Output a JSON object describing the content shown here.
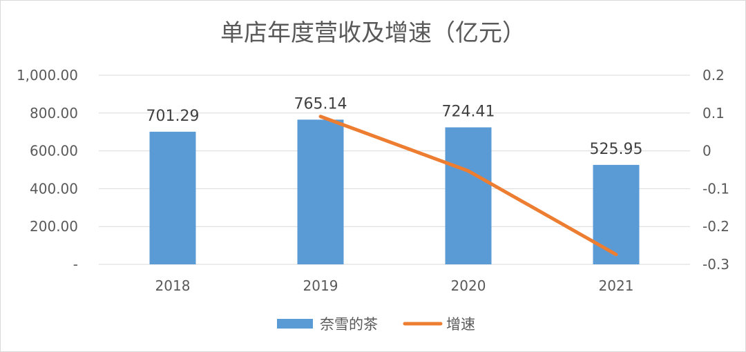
{
  "chart_data": {
    "type": "bar",
    "title": "单店年度营收及增速（亿元）",
    "categories": [
      "2018",
      "2019",
      "2020",
      "2021"
    ],
    "series": [
      {
        "name": "奈雪的茶",
        "type": "bar",
        "axis": "left",
        "color": "#5b9bd5",
        "values": [
          701.29,
          765.14,
          724.41,
          525.95
        ],
        "labels": [
          "701.29",
          "765.14",
          "724.41",
          "525.95"
        ]
      },
      {
        "name": "增速",
        "type": "line",
        "axis": "right",
        "color": "#ed7d31",
        "values": [
          null,
          0.091,
          -0.053,
          -0.274
        ]
      }
    ],
    "y_left": {
      "lim": [
        0,
        1000
      ],
      "ticks": [
        0,
        200,
        400,
        600,
        800,
        1000
      ],
      "tick_labels": [
        "-",
        "200.00",
        "400.00",
        "600.00",
        "800.00",
        "1,000.00"
      ]
    },
    "y_right": {
      "lim": [
        -0.3,
        0.2
      ],
      "ticks": [
        -0.3,
        -0.2,
        -0.1,
        0,
        0.1,
        0.2
      ],
      "tick_labels": [
        "-0.3",
        "-0.2",
        "-0.1",
        "0",
        "0.1",
        "0.2"
      ]
    },
    "grid": true,
    "legend": "bottom"
  }
}
